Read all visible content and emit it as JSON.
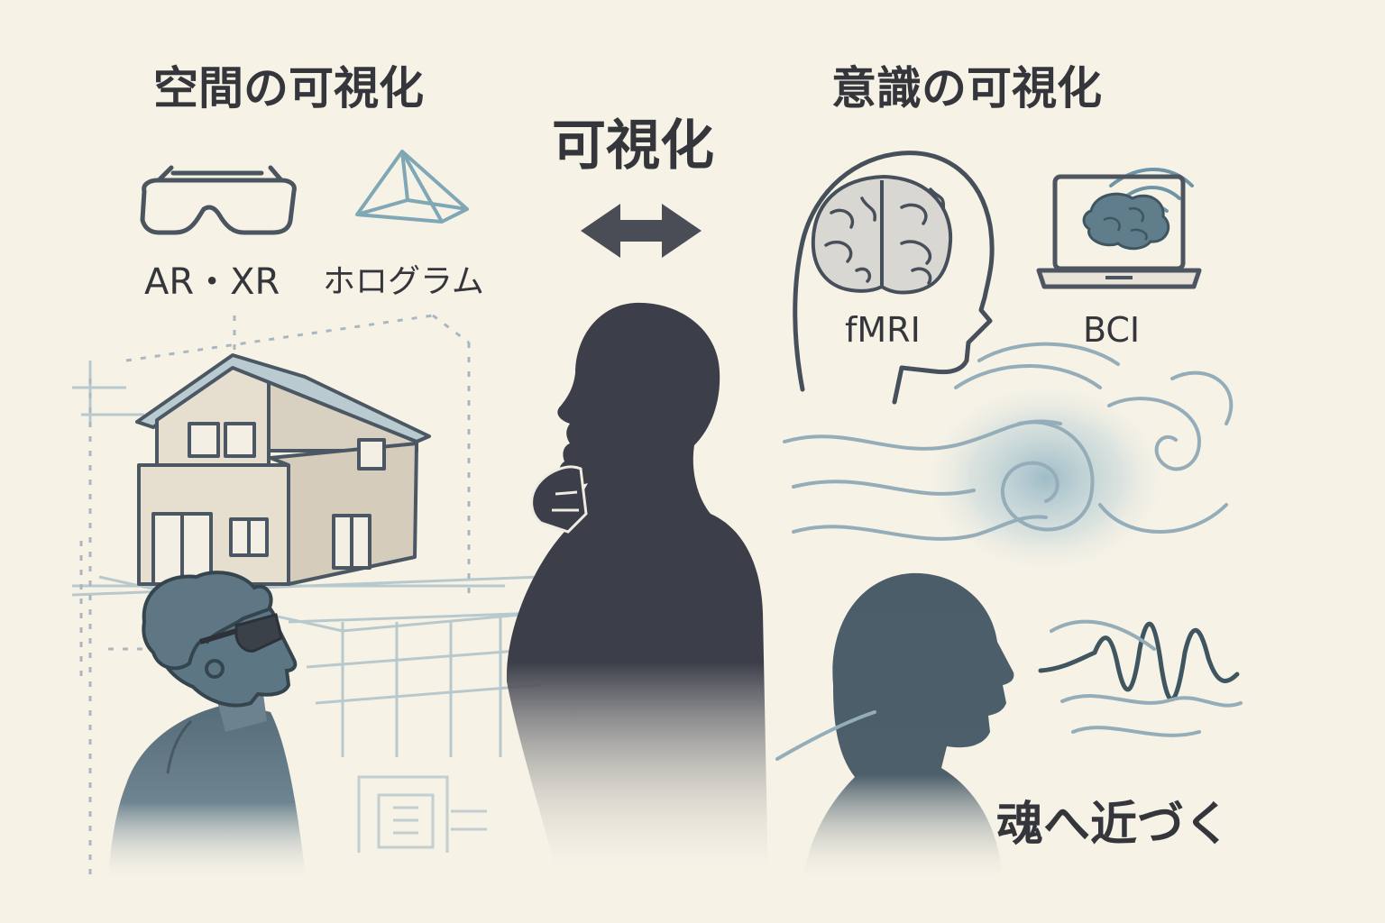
{
  "titles": {
    "space": "空間の可視化",
    "center": "可視化",
    "consciousness": "意識の可視化"
  },
  "labels": {
    "ar_xr": "AR・XR",
    "hologram": "ホログラム",
    "fmri": "fMRI",
    "bci": "BCI"
  },
  "caption": "魂へ近づく",
  "icons": [
    "ar-glasses-icon",
    "hologram-pyramid-icon",
    "double-arrow-icon",
    "brain-head-icon",
    "laptop-brain-wifi-icon"
  ],
  "colors": {
    "background": "#f6f2e6",
    "ink": "#34363b",
    "silhouette": "#3c3f4a",
    "slate": "#4f6470",
    "mist": "#8fb3c2"
  }
}
